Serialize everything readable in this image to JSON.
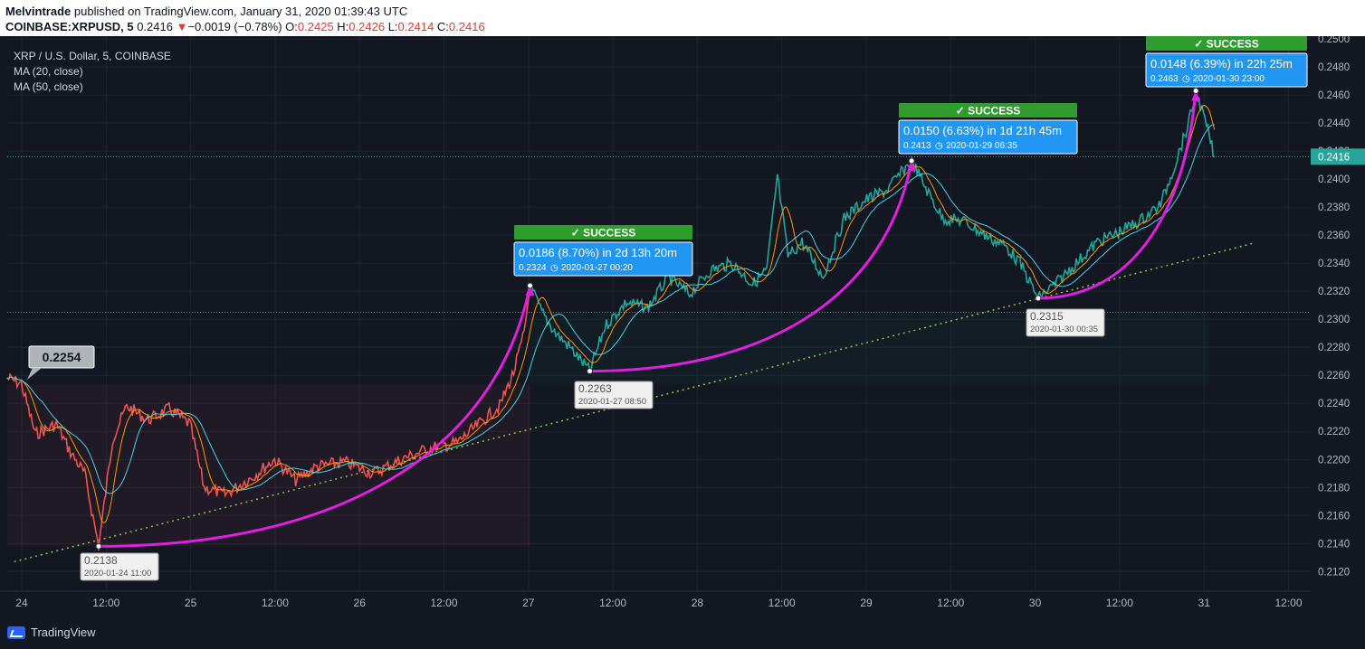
{
  "header": {
    "publisher": "Melvintrade",
    "published_text": "published on TradingView.com, January 31, 2020 01:39:43 UTC",
    "symbol_line": "COINBASE:XRPUSD, 5",
    "last": "0.2416",
    "down_arrow": "▼",
    "change": "−0.0019 (−0.78%)",
    "o_label": "O:",
    "o_value": "0.2425",
    "h_label": "H:",
    "h_value": "0.2426",
    "l_label": "L:",
    "l_value": "0.2414",
    "c_label": "C:",
    "c_value": "0.2416"
  },
  "legend": {
    "title": "XRP / U.S. Dollar, 5, COINBASE",
    "ma20": "MA (20, close)",
    "ma50": "MA (50, close)"
  },
  "footer": {
    "brand": "TradingView",
    "logo_icon": "tradingview-logo-icon"
  },
  "colors": {
    "background": "#131722",
    "down": "#ef5350",
    "up": "#26a69a",
    "curve": "#e020e0",
    "success": "#2e9d2e",
    "info": "#2196f3",
    "trend": "#8bc34a",
    "current_price": "#26a69a"
  },
  "chart_data": {
    "type": "line",
    "title": "XRP / U.S. Dollar, 5, COINBASE",
    "xlabel": "",
    "ylabel": "",
    "ylim": [
      0.2106,
      0.2502
    ],
    "grid": true,
    "y_ticks": [
      "0.2500",
      "0.2480",
      "0.2460",
      "0.2440",
      "0.2420",
      "0.2400",
      "0.2380",
      "0.2360",
      "0.2340",
      "0.2320",
      "0.2300",
      "0.2280",
      "0.2260",
      "0.2240",
      "0.2220",
      "0.2200",
      "0.2180",
      "0.2160",
      "0.2140",
      "0.2120"
    ],
    "x_ticks": [
      "24",
      "12:00",
      "25",
      "12:00",
      "26",
      "12:00",
      "27",
      "12:00",
      "28",
      "12:00",
      "29",
      "12:00",
      "30",
      "12:00",
      "31",
      "12:00"
    ],
    "current_price": {
      "value": 0.2416,
      "label": "0.2416"
    },
    "start_label": "0.2254",
    "reference_level": 0.2305,
    "price_path": [
      [
        "2020-01-23 22:00",
        0.2258
      ],
      [
        "2020-01-24 00:00",
        0.2254
      ],
      [
        "2020-01-24 02:00",
        0.2218
      ],
      [
        "2020-01-24 05:00",
        0.2225
      ],
      [
        "2020-01-24 07:00",
        0.2205
      ],
      [
        "2020-01-24 09:00",
        0.219
      ],
      [
        "2020-01-24 11:00",
        0.2138
      ],
      [
        "2020-01-24 13:00",
        0.2215
      ],
      [
        "2020-01-24 15:00",
        0.2238
      ],
      [
        "2020-01-24 18:00",
        0.2228
      ],
      [
        "2020-01-24 21:00",
        0.2236
      ],
      [
        "2020-01-25 00:00",
        0.2225
      ],
      [
        "2020-01-25 02:00",
        0.218
      ],
      [
        "2020-01-25 05:00",
        0.2175
      ],
      [
        "2020-01-25 09:00",
        0.2188
      ],
      [
        "2020-01-25 12:00",
        0.22
      ],
      [
        "2020-01-25 15:00",
        0.2185
      ],
      [
        "2020-01-25 18:00",
        0.2195
      ],
      [
        "2020-01-25 22:00",
        0.2198
      ],
      [
        "2020-01-26 02:00",
        0.219
      ],
      [
        "2020-01-26 06:00",
        0.22
      ],
      [
        "2020-01-26 10:00",
        0.2208
      ],
      [
        "2020-01-26 14:00",
        0.2212
      ],
      [
        "2020-01-26 17:00",
        0.2225
      ],
      [
        "2020-01-26 20:00",
        0.2238
      ],
      [
        "2020-01-26 22:00",
        0.2262
      ],
      [
        "2020-01-26 23:30",
        0.229
      ],
      [
        "2020-01-27 00:20",
        0.2324
      ],
      [
        "2020-01-27 02:00",
        0.2305
      ],
      [
        "2020-01-27 04:00",
        0.229
      ],
      [
        "2020-01-27 06:00",
        0.228
      ],
      [
        "2020-01-27 08:50",
        0.2263
      ],
      [
        "2020-01-27 11:00",
        0.2295
      ],
      [
        "2020-01-27 14:00",
        0.2312
      ],
      [
        "2020-01-27 17:00",
        0.2308
      ],
      [
        "2020-01-27 20:00",
        0.233
      ],
      [
        "2020-01-27 23:00",
        0.2318
      ],
      [
        "2020-01-28 02:00",
        0.2335
      ],
      [
        "2020-01-28 05:00",
        0.234
      ],
      [
        "2020-01-28 08:00",
        0.2325
      ],
      [
        "2020-01-28 10:00",
        0.2335
      ],
      [
        "2020-01-28 11:30",
        0.2402
      ],
      [
        "2020-01-28 13:00",
        0.2345
      ],
      [
        "2020-01-28 15:00",
        0.2355
      ],
      [
        "2020-01-28 18:00",
        0.233
      ],
      [
        "2020-01-28 21:00",
        0.2372
      ],
      [
        "2020-01-29 00:00",
        0.2385
      ],
      [
        "2020-01-29 03:00",
        0.2392
      ],
      [
        "2020-01-29 06:35",
        0.2413
      ],
      [
        "2020-01-29 09:00",
        0.239
      ],
      [
        "2020-01-29 11:00",
        0.2372
      ],
      [
        "2020-01-29 14:00",
        0.237
      ],
      [
        "2020-01-29 17:00",
        0.236
      ],
      [
        "2020-01-29 20:00",
        0.2352
      ],
      [
        "2020-01-29 22:00",
        0.234
      ],
      [
        "2020-01-30 00:35",
        0.2315
      ],
      [
        "2020-01-30 03:00",
        0.2325
      ],
      [
        "2020-01-30 06:00",
        0.234
      ],
      [
        "2020-01-30 09:00",
        0.2355
      ],
      [
        "2020-01-30 12:00",
        0.2362
      ],
      [
        "2020-01-30 15:00",
        0.237
      ],
      [
        "2020-01-30 18:00",
        0.2382
      ],
      [
        "2020-01-30 20:00",
        0.241
      ],
      [
        "2020-01-30 22:00",
        0.244
      ],
      [
        "2020-01-30 23:00",
        0.2463
      ],
      [
        "2020-01-31 00:30",
        0.2438
      ],
      [
        "2020-01-31 01:39",
        0.2416
      ]
    ],
    "annotations": [
      {
        "success": "✓ SUCCESS",
        "line1": "0.0186 (8.70%) in 2d 13h 20m",
        "price": "0.2324",
        "date": "2020-01-27  00:20",
        "low_price": "0.2263",
        "low_date": "2020-01-27 08:50"
      },
      {
        "success": "✓ SUCCESS",
        "line1": "0.0150 (6.63%) in 1d 21h 45m",
        "price": "0.2413",
        "date": "2020-01-29  06:35",
        "low_price": "0.2315",
        "low_date": "2020-01-30 00:35"
      },
      {
        "success": "✓ SUCCESS",
        "line1": "0.0148 (6.39%) in 22h 25m",
        "price": "0.2463",
        "date": "2020-01-30  23:00"
      }
    ],
    "first_low": {
      "price": "0.2138",
      "date": "2020-01-24 11:00"
    },
    "trendline": [
      [
        "2020-01-23 23:00",
        0.2127
      ],
      [
        "2020-01-31 07:00",
        0.2354
      ]
    ]
  }
}
